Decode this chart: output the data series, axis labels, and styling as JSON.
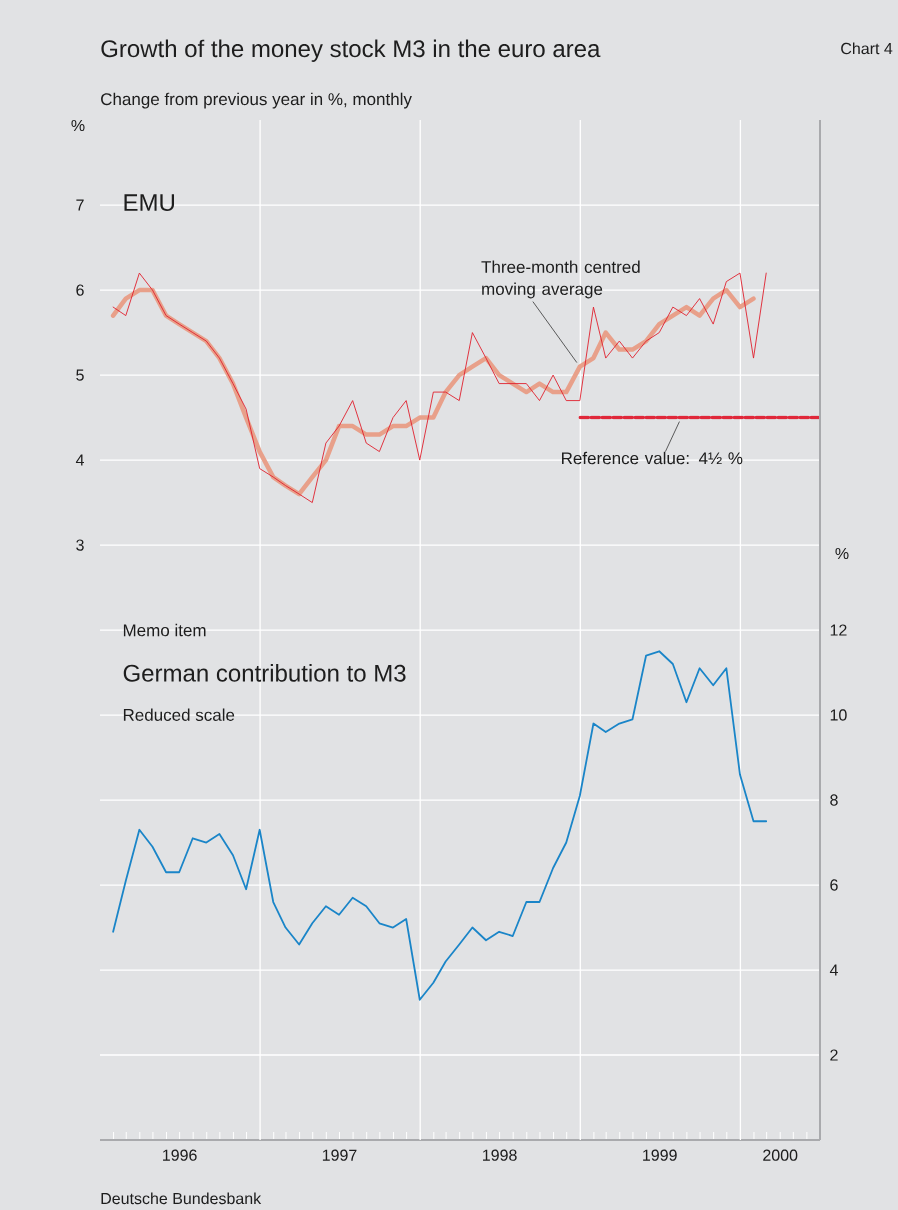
{
  "chart_data": {
    "type": "line",
    "title": "Growth of the money stock M3 in the euro area",
    "subtitle": "Change from previous year in %, monthly",
    "ylabel": "%",
    "y2label": "%",
    "x": [
      "1996-01-31",
      "1996-02-29",
      "1996-03-31",
      "1996-04-30",
      "1996-05-31",
      "1996-06-30",
      "1996-07-31",
      "1996-08-31",
      "1996-09-30",
      "1996-10-31",
      "1996-11-30",
      "1996-12-31",
      "1997-01-31",
      "1997-02-28",
      "1997-03-31",
      "1997-04-30",
      "1997-05-31",
      "1997-06-30",
      "1997-07-31",
      "1997-08-31",
      "1997-09-30",
      "1997-10-31",
      "1997-11-30",
      "1997-12-31",
      "1998-01-31",
      "1998-02-28",
      "1998-03-31",
      "1998-04-30",
      "1998-05-31",
      "1998-06-30",
      "1998-07-31",
      "1998-08-31",
      "1998-09-30",
      "1998-10-31",
      "1998-11-30",
      "1998-12-31",
      "1999-01-31",
      "1999-02-28",
      "1999-03-31",
      "1999-04-30",
      "1999-05-31",
      "1999-06-30",
      "1999-07-31",
      "1999-08-31",
      "1999-09-30",
      "1999-10-31",
      "1999-11-30",
      "1999-12-31",
      "2000-01-31",
      "2000-02-29"
    ],
    "series": [
      {
        "color": "#e8a08a",
        "values": [
          5.7,
          5.9,
          6.0,
          6.0,
          5.7,
          5.6,
          5.5,
          5.4,
          5.2,
          4.9,
          4.5,
          4.1,
          3.8,
          3.7,
          3.6,
          3.8,
          4.0,
          4.4,
          4.4,
          4.3,
          4.3,
          4.4,
          4.4,
          4.5,
          4.5,
          4.8,
          5.0,
          5.1,
          5.2,
          5.0,
          4.9,
          4.8,
          4.9,
          4.8,
          4.8,
          5.1,
          5.2,
          5.5,
          5.3,
          5.3,
          5.4,
          5.6,
          5.7,
          5.8,
          5.7,
          5.9,
          6.0,
          5.8,
          5.9,
          null
        ]
      },
      {
        "color": "#e0202e",
        "values": [
          5.8,
          5.7,
          6.2,
          6.0,
          5.7,
          5.6,
          5.5,
          5.4,
          5.2,
          4.9,
          4.6,
          3.9,
          3.8,
          3.7,
          3.6,
          3.5,
          4.2,
          4.4,
          4.7,
          4.2,
          4.1,
          4.5,
          4.7,
          4.0,
          4.8,
          4.8,
          4.7,
          5.5,
          5.2,
          4.9,
          4.9,
          4.9,
          4.7,
          5.0,
          4.7,
          4.7,
          5.8,
          5.2,
          5.4,
          5.2,
          5.4,
          5.5,
          5.8,
          5.7,
          5.9,
          5.6,
          6.1,
          6.2,
          5.2,
          6.2
        ]
      },
      {
        "color": "#e0283a",
        "line_style": "dashed",
        "x": [
          "1999-01-01",
          "2000-07-01"
        ],
        "values": [
          4.5,
          4.5
        ]
      },
      {
        "color": "#1a85c8",
        "axis": "y2",
        "values": [
          4.9,
          6.1,
          7.3,
          6.9,
          6.3,
          6.3,
          7.1,
          7.0,
          7.2,
          6.7,
          5.9,
          7.3,
          5.6,
          5.0,
          4.6,
          5.1,
          5.5,
          5.3,
          5.7,
          5.5,
          5.1,
          5.0,
          5.2,
          3.3,
          3.7,
          4.2,
          4.6,
          5.0,
          4.7,
          4.9,
          4.8,
          5.6,
          5.6,
          6.4,
          7.0,
          8.1,
          9.8,
          9.6,
          9.8,
          9.9,
          11.4,
          11.5,
          11.2,
          10.3,
          11.1,
          10.7,
          11.1,
          8.6,
          7.5,
          7.5
        ]
      }
    ],
    "xlim": [
      "1996-01-01",
      "2000-07-01"
    ],
    "xticks": [
      {
        "value": "1996-07-01",
        "label": "1996"
      },
      {
        "value": "1997-01-01",
        "label": null
      },
      {
        "value": "1997-07-01",
        "label": "1997"
      },
      {
        "value": "1998-01-01",
        "label": null
      },
      {
        "value": "1998-07-01",
        "label": "1998"
      },
      {
        "value": "1999-01-01",
        "label": null
      },
      {
        "value": "1999-07-01",
        "label": "1999"
      },
      {
        "value": "2000-01-01",
        "label": null
      },
      {
        "value": "2000-04-01",
        "label": "2000"
      }
    ],
    "ylim": [
      -4,
      8
    ],
    "yticks": [
      {
        "value": -3,
        "label": null
      },
      {
        "value": -2,
        "label": null
      },
      {
        "value": -1,
        "label": null
      },
      {
        "value": 0,
        "label": null
      },
      {
        "value": 1,
        "label": null
      },
      {
        "value": 2,
        "label": null
      },
      3,
      4,
      5,
      6,
      7
    ],
    "y2lim": [
      0,
      24
    ],
    "y2ticks": [
      2,
      4,
      6,
      8,
      10,
      12
    ],
    "grid": true,
    "marker": "none",
    "annotations": [
      "Chart 4",
      "EMU",
      {
        "text": "Three-month centred moving average",
        "x": "1998-12-31",
        "y": 5.1
      },
      {
        "text": "Reference value: 4½ %",
        "x": "1999-08-15",
        "y": 4.5
      },
      "Memo item",
      "German contribution to M3",
      "Reduced scale",
      "Deutsche Bundesbank"
    ]
  }
}
